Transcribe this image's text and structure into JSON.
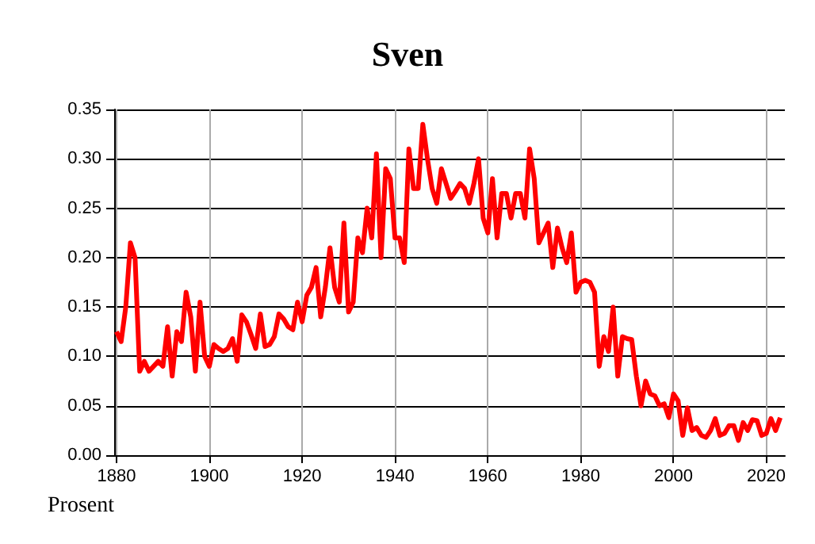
{
  "chart_data": {
    "type": "line",
    "title": "Sven",
    "ylabel": "Prosent",
    "x": [
      1880,
      1881,
      1882,
      1883,
      1884,
      1885,
      1886,
      1887,
      1888,
      1889,
      1890,
      1891,
      1892,
      1893,
      1894,
      1895,
      1896,
      1897,
      1898,
      1899,
      1900,
      1901,
      1902,
      1903,
      1904,
      1905,
      1906,
      1907,
      1908,
      1909,
      1910,
      1911,
      1912,
      1913,
      1914,
      1915,
      1916,
      1917,
      1918,
      1919,
      1920,
      1921,
      1922,
      1923,
      1924,
      1925,
      1926,
      1927,
      1928,
      1929,
      1930,
      1931,
      1932,
      1933,
      1934,
      1935,
      1936,
      1937,
      1938,
      1939,
      1940,
      1941,
      1942,
      1943,
      1944,
      1945,
      1946,
      1947,
      1948,
      1949,
      1950,
      1951,
      1952,
      1953,
      1954,
      1955,
      1956,
      1957,
      1958,
      1959,
      1960,
      1961,
      1962,
      1963,
      1964,
      1965,
      1966,
      1967,
      1968,
      1969,
      1970,
      1971,
      1972,
      1973,
      1974,
      1975,
      1976,
      1977,
      1978,
      1979,
      1980,
      1981,
      1982,
      1983,
      1984,
      1985,
      1986,
      1987,
      1988,
      1989,
      1990,
      1991,
      1992,
      1993,
      1994,
      1995,
      1996,
      1997,
      1998,
      1999,
      2000,
      2001,
      2002,
      2003,
      2004,
      2005,
      2006,
      2007,
      2008,
      2009,
      2010,
      2011,
      2012,
      2013,
      2014,
      2015,
      2016,
      2017,
      2018,
      2019,
      2020,
      2021,
      2022,
      2023
    ],
    "series": [
      {
        "color": "#ff0000",
        "values": [
          0.125,
          0.115,
          0.15,
          0.215,
          0.2,
          0.085,
          0.095,
          0.085,
          0.09,
          0.095,
          0.09,
          0.13,
          0.08,
          0.125,
          0.115,
          0.165,
          0.14,
          0.085,
          0.155,
          0.1,
          0.09,
          0.112,
          0.108,
          0.105,
          0.108,
          0.118,
          0.095,
          0.142,
          0.135,
          0.122,
          0.108,
          0.143,
          0.11,
          0.112,
          0.12,
          0.143,
          0.138,
          0.13,
          0.127,
          0.155,
          0.135,
          0.162,
          0.17,
          0.19,
          0.14,
          0.17,
          0.21,
          0.17,
          0.155,
          0.235,
          0.145,
          0.155,
          0.22,
          0.205,
          0.25,
          0.22,
          0.305,
          0.2,
          0.29,
          0.28,
          0.22,
          0.22,
          0.195,
          0.31,
          0.27,
          0.27,
          0.335,
          0.3,
          0.27,
          0.255,
          0.29,
          0.275,
          0.26,
          0.267,
          0.275,
          0.27,
          0.255,
          0.275,
          0.3,
          0.24,
          0.225,
          0.28,
          0.22,
          0.265,
          0.265,
          0.24,
          0.265,
          0.265,
          0.24,
          0.31,
          0.28,
          0.215,
          0.225,
          0.235,
          0.19,
          0.23,
          0.21,
          0.195,
          0.225,
          0.165,
          0.175,
          0.177,
          0.175,
          0.165,
          0.09,
          0.12,
          0.105,
          0.15,
          0.08,
          0.12,
          0.118,
          0.117,
          0.08,
          0.05,
          0.075,
          0.062,
          0.06,
          0.05,
          0.052,
          0.038,
          0.062,
          0.055,
          0.02,
          0.048,
          0.025,
          0.028,
          0.02,
          0.018,
          0.025,
          0.037,
          0.02,
          0.022,
          0.03,
          0.03,
          0.015,
          0.033,
          0.025,
          0.036,
          0.035,
          0.02,
          0.022,
          0.037,
          0.025,
          0.038
        ]
      }
    ],
    "xlim": [
      1879.5,
      2024
    ],
    "xticks": [
      1880,
      1900,
      1920,
      1940,
      1960,
      1980,
      2000,
      2020
    ],
    "ylim": [
      0,
      0.35
    ],
    "yticks": [
      {
        "value": 0,
        "label": "0.00"
      },
      {
        "value": 0.05,
        "label": "0.05"
      },
      {
        "value": 0.1,
        "label": "0.10"
      },
      {
        "value": 0.15,
        "label": "0.15"
      },
      {
        "value": 0.2,
        "label": "0.20"
      },
      {
        "value": 0.25,
        "label": "0.25"
      },
      {
        "value": 0.3,
        "label": "0.30"
      },
      {
        "value": 0.35,
        "label": "0.35"
      }
    ],
    "grid": true,
    "marker": "none",
    "line_style": "solid"
  }
}
